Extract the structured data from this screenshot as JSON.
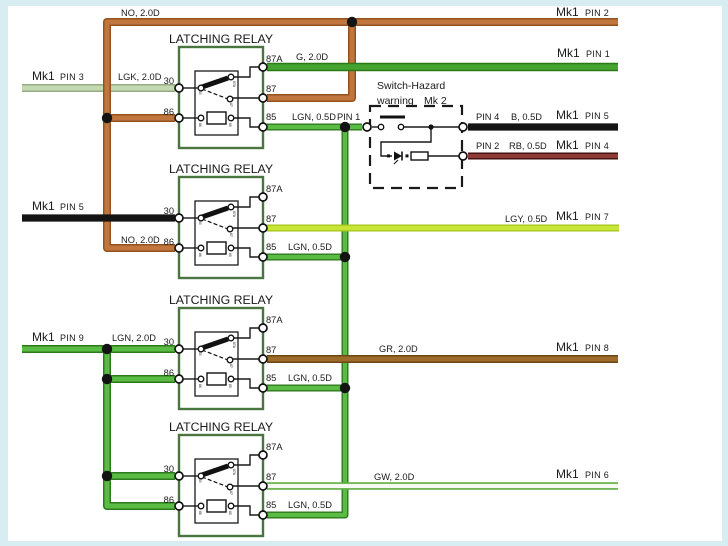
{
  "colors": {
    "no_orange": "#c1763d",
    "lgk_pale_green": "#c3d9b0",
    "g_green": "#44a42f",
    "lgn_green": "#5abc44",
    "lgy_lime": "#c8e437",
    "black": "#141414",
    "rb_maroon": "#8e3b38",
    "gr_brown": "#9c6b2a",
    "gw_white_core": "#f6faf3",
    "gw_green_edge": "#5fae43",
    "relay_box_green": "#4a7440",
    "junction_dot": "#131313",
    "frame_blue": "#d8edf2"
  },
  "relays": [
    {
      "title": "LATCHING RELAY",
      "t30": "30",
      "t86": "86",
      "t87a": "87A",
      "t87": "87",
      "t85": "85"
    },
    {
      "title": "LATCHING RELAY",
      "t30": "30",
      "t86": "86",
      "t87a": "87A",
      "t87": "87",
      "t85": "85"
    },
    {
      "title": "LATCHING RELAY",
      "t30": "30",
      "t86": "86",
      "t87a": "87A",
      "t87": "87",
      "t85": "85"
    },
    {
      "title": "LATCHING RELAY",
      "t30": "30",
      "t86": "86",
      "t87a": "87A",
      "t87": "87",
      "t85": "85"
    }
  ],
  "labels": {
    "no_top": "NO, 2.0D",
    "no_lower": "NO, 2.0D",
    "g": "G, 2.0D",
    "lgk": "LGK, 2.0D",
    "lgn_feed": "LGN, 2.0D",
    "lgn_r1": "LGN, 0.5D",
    "pin1": "PIN 1",
    "lgn_r2": "LGN, 0.5D",
    "lgn_r3": "LGN, 0.5D",
    "lgn_r4": "LGN, 0.5D",
    "lgy": "LGY, 0.5D",
    "gr": "GR, 2.0D",
    "gw": "GW, 2.0D",
    "b": "B, 0.5D",
    "rb": "RB, 0.5D",
    "pin4": "PIN 4",
    "pin2": "PIN 2"
  },
  "endpoints": {
    "left": [
      {
        "mk": "Mk1",
        "pin": "PIN 3"
      },
      {
        "mk": "Mk1",
        "pin": "PIN 5"
      },
      {
        "mk": "Mk1",
        "pin": "PIN 9"
      }
    ],
    "right": [
      {
        "mk": "Mk1",
        "pin": "PIN 2"
      },
      {
        "mk": "Mk1",
        "pin": "PIN 1"
      },
      {
        "mk": "Mk1",
        "pin": "PIN 5"
      },
      {
        "mk": "Mk1",
        "pin": "PIN 4"
      },
      {
        "mk": "Mk1",
        "pin": "PIN 7"
      },
      {
        "mk": "Mk1",
        "pin": "PIN 8"
      },
      {
        "mk": "Mk1",
        "pin": "PIN 6"
      }
    ]
  },
  "hazard_switch": {
    "line1": "Switch-Hazard",
    "line2_word": "warning",
    "line2_mark": "Mk 2"
  }
}
